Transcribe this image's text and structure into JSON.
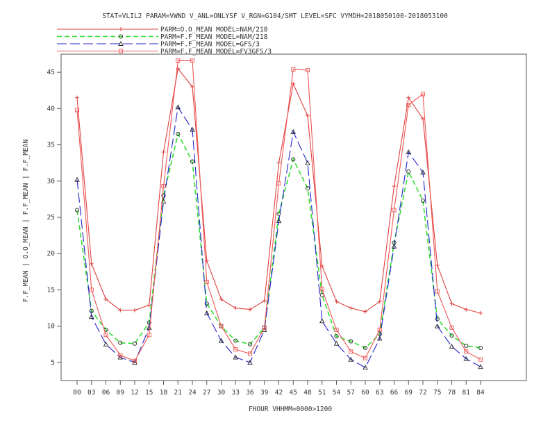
{
  "chart_data": {
    "type": "line",
    "title": "STAT=VLIL2 PARAM=VWND V_ANL=ONLYSF V_RGN=G104/SMT LEVEL=SFC VYMDH=2018050100-2018053100",
    "xlabel": "FHOUR VHHMM=0000>1200",
    "ylabel": "F.F_MEAN | O.O_MEAN | F.F_MEAN | F.F_MEAN",
    "x": [
      "00",
      "03",
      "06",
      "09",
      "12",
      "15",
      "18",
      "21",
      "24",
      "27",
      "30",
      "33",
      "36",
      "39",
      "42",
      "45",
      "48",
      "51",
      "54",
      "57",
      "60",
      "63",
      "66",
      "69",
      "72",
      "75",
      "78",
      "81",
      "84"
    ],
    "ylim": [
      2.5,
      47.5
    ],
    "yticks": [
      5,
      10,
      15,
      20,
      25,
      30,
      35,
      40,
      45
    ],
    "grid": false,
    "legend_position": "top-left, above plot",
    "series": [
      {
        "name": "PARM=O.O_MEAN MODEL=NAM/218",
        "color": "#e04040",
        "marker": "plus",
        "dash": "solid",
        "values": [
          41.5,
          18.6,
          13.7,
          12.2,
          12.2,
          12.9,
          34.0,
          45.5,
          43.0,
          19.0,
          13.7,
          12.5,
          12.3,
          13.5,
          32.5,
          43.4,
          39.0,
          18.3,
          13.4,
          12.5,
          12.0,
          13.4,
          29.3,
          41.5,
          38.6,
          18.4,
          13.1,
          12.3,
          11.8
        ]
      },
      {
        "name": "PARM=F.F_MEAN MODEL=NAM/218",
        "color": "#33dd33",
        "marker": "diamond",
        "dash": "dashed",
        "values": [
          26.0,
          12.1,
          9.5,
          7.7,
          7.6,
          10.5,
          28.0,
          36.5,
          32.7,
          13.1,
          10.0,
          8.0,
          7.5,
          9.8,
          25.5,
          33.0,
          29.0,
          14.3,
          8.6,
          7.9,
          7.0,
          8.9,
          21.5,
          31.3,
          27.3,
          11.0,
          8.7,
          7.3,
          7.0
        ]
      },
      {
        "name": "PARM=F.F_MEAN MODEL=GFS/3",
        "color": "#2222cc",
        "marker": "triangle",
        "dash": "longdash",
        "values": [
          30.2,
          11.3,
          7.5,
          5.7,
          5.0,
          9.8,
          27.2,
          40.2,
          37.1,
          11.8,
          8.0,
          5.7,
          5.0,
          9.5,
          24.5,
          36.8,
          32.5,
          10.7,
          7.6,
          5.4,
          4.3,
          8.3,
          21.0,
          34.0,
          31.2,
          10.0,
          7.2,
          5.5,
          4.4
        ]
      },
      {
        "name": "PARM=F.F_MEAN MODEL=FV3GFS/3",
        "color": "#ee5555",
        "marker": "square",
        "dash": "solid",
        "values": [
          39.8,
          15.0,
          8.8,
          6.0,
          5.2,
          8.8,
          29.3,
          46.6,
          46.6,
          16.1,
          10.0,
          6.8,
          6.2,
          9.8,
          29.7,
          45.4,
          45.3,
          15.1,
          9.5,
          6.5,
          5.6,
          9.5,
          26.0,
          40.5,
          42.0,
          14.8,
          9.8,
          6.5,
          5.4
        ]
      }
    ]
  }
}
